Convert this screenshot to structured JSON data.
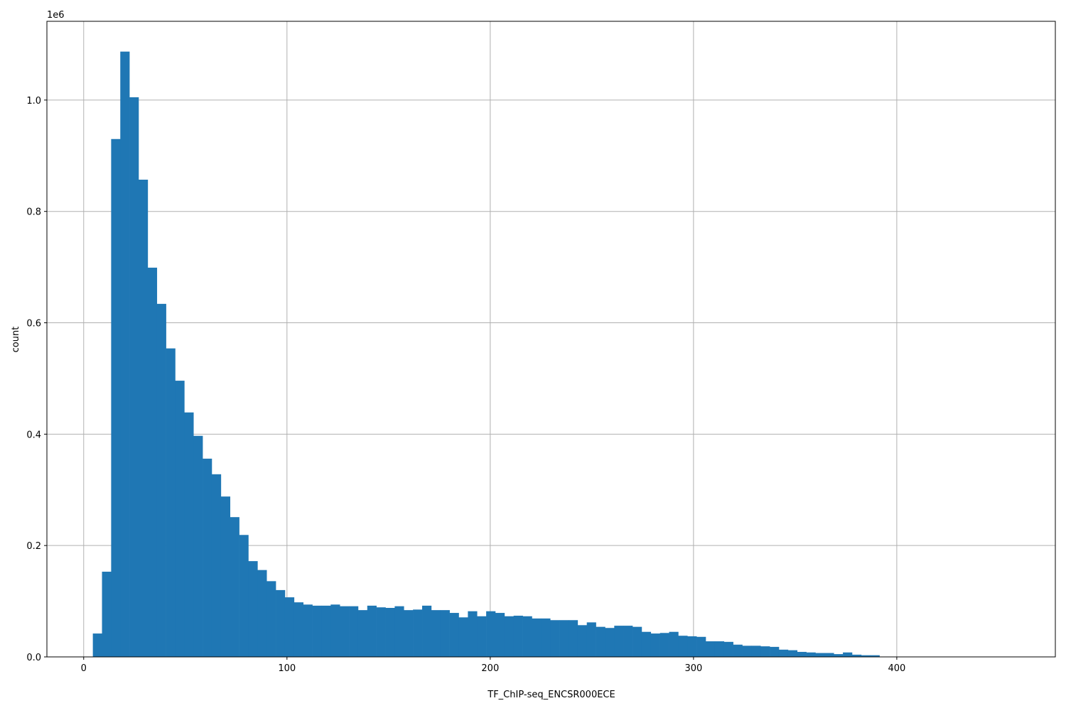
{
  "chart_data": {
    "type": "bar",
    "subtype": "histogram",
    "title": "",
    "xlabel": "TF_ChIP-seq_ENCSR000ECE",
    "ylabel": "count",
    "y_offset_label": "1e6",
    "xlim": [
      -18.1,
      478
    ],
    "ylim": [
      0,
      1141400
    ],
    "x_ticks": [
      0,
      100,
      200,
      300,
      400
    ],
    "x_tick_labels": [
      "0",
      "100",
      "200",
      "300",
      "400"
    ],
    "y_ticks": [
      0,
      200000,
      400000,
      600000,
      800000,
      1000000
    ],
    "y_tick_labels": [
      "0.0",
      "0.2",
      "0.4",
      "0.6",
      "0.8",
      "1.0"
    ],
    "grid": true,
    "bar_color": "#1f77b4",
    "bin_start": 4.5,
    "bin_width": 4.5,
    "values": [
      42000,
      153000,
      930000,
      1087000,
      1005000,
      857000,
      699000,
      634000,
      554000,
      496000,
      439000,
      397000,
      356000,
      328000,
      288000,
      251000,
      219000,
      172000,
      156000,
      136000,
      120000,
      107000,
      98000,
      94000,
      92000,
      92000,
      94000,
      91000,
      91000,
      84000,
      92000,
      89000,
      88000,
      91000,
      84000,
      85000,
      92000,
      84000,
      84000,
      79000,
      71000,
      82000,
      73000,
      82000,
      79000,
      73000,
      74000,
      73000,
      69000,
      69000,
      66000,
      66000,
      66000,
      57000,
      62000,
      54000,
      52000,
      56000,
      56000,
      54000,
      45000,
      42000,
      43000,
      45000,
      38000,
      37000,
      36000,
      28000,
      28000,
      27000,
      22000,
      20000,
      20000,
      19000,
      18000,
      13000,
      12000,
      9000,
      8000,
      7000,
      7000,
      5000,
      8000,
      4000,
      3000,
      3000,
      0,
      0,
      0,
      0,
      0,
      0,
      0,
      0,
      0,
      0,
      0,
      0,
      0,
      0
    ]
  }
}
